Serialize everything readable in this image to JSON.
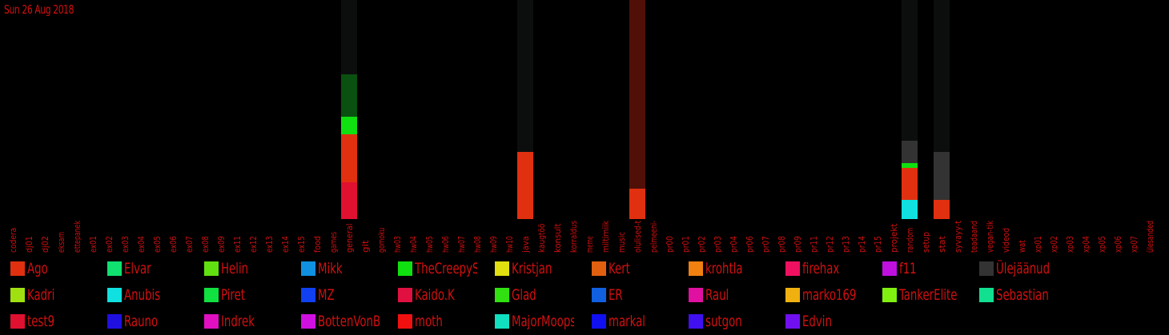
{
  "date_label": "Sun 26 Aug 2018",
  "chart_data": {
    "type": "bar",
    "stacked": true,
    "grid": false,
    "categories": [
      "codera",
      "dj01",
      "dj02",
      "eksam",
      "ettepanek",
      "ex01",
      "ex02",
      "ex03",
      "ex04",
      "ex05",
      "ex06",
      "ex07",
      "ex08",
      "ex09",
      "ex11",
      "ex12",
      "ex13",
      "ex14",
      "ex15",
      "food",
      "games",
      "general",
      "git",
      "gomoku",
      "hw03",
      "hw04",
      "hw05",
      "hw06",
      "hw07",
      "hw08",
      "hw09",
      "hw10",
      "java",
      "kaugtöö",
      "konsult",
      "korraldus",
      "meme",
      "miltimiik",
      "music",
      "olulised-t",
      "pelmeeni-",
      "pr00",
      "pr01",
      "pr02",
      "pr03",
      "pr04",
      "pr06",
      "pr07",
      "pr08",
      "pr09",
      "pr11",
      "pr12",
      "pr13",
      "pr14",
      "pr15",
      "projekt",
      "random",
      "setup",
      "stat",
      "syvayy-t",
      "teadaand",
      "vegan-tik",
      "videod",
      "wat",
      "xp01",
      "xp02",
      "xp03",
      "xp04",
      "xp05",
      "xp06",
      "xp07",
      "ülesanded"
    ],
    "series": [
      {
        "name": "Ago",
        "color": "#e03010",
        "values": {
          "general": 60,
          "java": 84,
          "olulised-t": 38,
          "random": 40,
          "stat": 24
        }
      },
      {
        "name": "Elvar",
        "color": "#10e070",
        "values": {}
      },
      {
        "name": "Helin",
        "color": "#60e010",
        "values": {}
      },
      {
        "name": "Mikk",
        "color": "#1090e0",
        "values": {}
      },
      {
        "name": "TheCreepySh",
        "color": "#10e010",
        "values": {
          "general": 22,
          "random": 6
        }
      },
      {
        "name": "Kristjan",
        "color": "#e0e010",
        "values": {}
      },
      {
        "name": "Kert",
        "color": "#e06010",
        "values": {}
      },
      {
        "name": "krohtla",
        "color": "#f08010",
        "values": {}
      },
      {
        "name": "firehax",
        "color": "#f01060",
        "values": {}
      },
      {
        "name": "f11",
        "color": "#c010e0",
        "values": {}
      },
      {
        "name": "Ülejäänud",
        "color": "#333333",
        "values": {
          "random": 28,
          "stat": 60
        }
      },
      {
        "name": "Kadri",
        "color": "#a0e010",
        "values": {}
      },
      {
        "name": "Anubis",
        "color": "#10e0e0",
        "values": {
          "random": 24
        }
      },
      {
        "name": "Piret",
        "color": "#10e040",
        "values": {}
      },
      {
        "name": "MZ",
        "color": "#1040f0",
        "values": {}
      },
      {
        "name": "Kaido.K",
        "color": "#e01040",
        "values": {}
      },
      {
        "name": "Glad",
        "color": "#30e010",
        "values": {}
      },
      {
        "name": "ER",
        "color": "#1060e0",
        "values": {}
      },
      {
        "name": "Raul",
        "color": "#e010a0",
        "values": {}
      },
      {
        "name": "marko169",
        "color": "#f0b010",
        "values": {}
      },
      {
        "name": "TankerElite",
        "color": "#80f010",
        "values": {}
      },
      {
        "name": "Sebastian",
        "color": "#10e090",
        "values": {}
      },
      {
        "name": "test9",
        "color": "#e01030",
        "values": {
          "general": 46
        }
      },
      {
        "name": "Rauno",
        "color": "#2010e0",
        "values": {}
      },
      {
        "name": "Indrek",
        "color": "#e010c0",
        "values": {}
      },
      {
        "name": "BottenVonBot",
        "color": "#d010e0",
        "values": {}
      },
      {
        "name": "moth",
        "color": "#f01010",
        "values": {}
      },
      {
        "name": "MajorMoopsy",
        "color": "#10e0c0",
        "values": {}
      },
      {
        "name": "markal",
        "color": "#1010f0",
        "values": {}
      },
      {
        "name": "sutgon",
        "color": "#4010f0",
        "values": {}
      },
      {
        "name": "Edvin",
        "color": "#7010f0",
        "values": {}
      }
    ],
    "dark_segments": {
      "general": {
        "color": "#0a5010",
        "value": 53
      },
      "olulised-t": {
        "color": "#501008",
        "value": 236
      }
    },
    "background_columns": [
      "general",
      "java",
      "olulised-t",
      "random",
      "stat"
    ],
    "ylim": [
      0,
      274
    ],
    "legend": "bottom"
  }
}
